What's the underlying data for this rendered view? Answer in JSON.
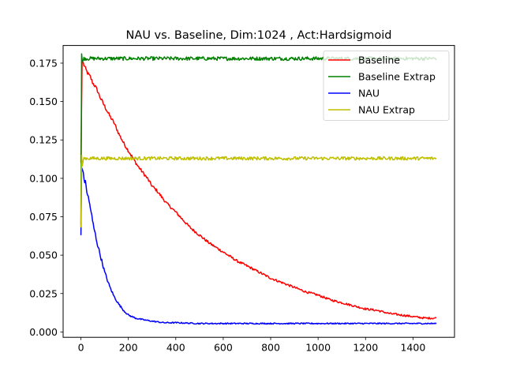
{
  "chart_data": {
    "type": "line",
    "title": "NAU vs. Baseline, Dim:1024 , Act:Hardsigmoid",
    "xlabel": "",
    "ylabel": "",
    "xlim": [
      -75,
      1575
    ],
    "ylim": [
      -0.0035,
      0.1865
    ],
    "x_ticks": [
      0,
      200,
      400,
      600,
      800,
      1000,
      1200,
      1400
    ],
    "x_tick_labels": [
      "0",
      "200",
      "400",
      "600",
      "800",
      "1000",
      "1200",
      "1400"
    ],
    "y_ticks": [
      0.0,
      0.025,
      0.05,
      0.075,
      0.1,
      0.125,
      0.15,
      0.175
    ],
    "y_tick_labels": [
      "0.000",
      "0.025",
      "0.050",
      "0.075",
      "0.100",
      "0.125",
      "0.150",
      "0.175"
    ],
    "grid": false,
    "legend_position": "top-right",
    "series": [
      {
        "name": "Baseline",
        "color": "#ff0000",
        "x": [
          0,
          5,
          10,
          20,
          30,
          40,
          50,
          60,
          70,
          80,
          90,
          100,
          120,
          140,
          160,
          180,
          200,
          220,
          240,
          260,
          280,
          300,
          320,
          340,
          360,
          380,
          400,
          430,
          460,
          500,
          540,
          580,
          620,
          660,
          700,
          750,
          800,
          850,
          900,
          950,
          1000,
          1050,
          1100,
          1150,
          1200,
          1250,
          1300,
          1350,
          1400,
          1450,
          1500
        ],
        "y": [
          0.11,
          0.176,
          0.175,
          0.171,
          0.168,
          0.166,
          0.162,
          0.16,
          0.157,
          0.153,
          0.15,
          0.147,
          0.141,
          0.136,
          0.129,
          0.123,
          0.118,
          0.113,
          0.108,
          0.104,
          0.1,
          0.095,
          0.092,
          0.088,
          0.084,
          0.081,
          0.078,
          0.073,
          0.068,
          0.063,
          0.058,
          0.054,
          0.05,
          0.046,
          0.043,
          0.039,
          0.035,
          0.032,
          0.029,
          0.026,
          0.024,
          0.021,
          0.019,
          0.017,
          0.015,
          0.014,
          0.012,
          0.011,
          0.01,
          0.009,
          0.009
        ]
      },
      {
        "name": "Baseline Extrap",
        "color": "#008000",
        "x": [
          0,
          3,
          6,
          10,
          50,
          100,
          200,
          300,
          400,
          500,
          600,
          700,
          800,
          900,
          1000,
          1100,
          1200,
          1300,
          1400,
          1500
        ],
        "y": [
          0.07,
          0.181,
          0.176,
          0.178,
          0.178,
          0.178,
          0.178,
          0.178,
          0.178,
          0.178,
          0.178,
          0.178,
          0.178,
          0.178,
          0.178,
          0.178,
          0.178,
          0.178,
          0.178,
          0.178
        ]
      },
      {
        "name": "NAU",
        "color": "#0000ff",
        "x": [
          0,
          3,
          10,
          20,
          30,
          40,
          50,
          60,
          70,
          80,
          90,
          100,
          120,
          140,
          160,
          180,
          200,
          230,
          260,
          300,
          350,
          400,
          500,
          600,
          700,
          800,
          900,
          1000,
          1100,
          1200,
          1300,
          1400,
          1500
        ],
        "y": [
          0.063,
          0.107,
          0.102,
          0.096,
          0.088,
          0.081,
          0.071,
          0.064,
          0.057,
          0.051,
          0.045,
          0.039,
          0.03,
          0.023,
          0.018,
          0.014,
          0.011,
          0.009,
          0.008,
          0.007,
          0.006,
          0.006,
          0.0055,
          0.0055,
          0.0055,
          0.0055,
          0.0055,
          0.0055,
          0.0055,
          0.0055,
          0.0055,
          0.0055,
          0.0055
        ]
      },
      {
        "name": "NAU Extrap",
        "color": "#bfbf00",
        "x": [
          0,
          3,
          6,
          10,
          50,
          100,
          200,
          300,
          400,
          500,
          600,
          700,
          800,
          900,
          1000,
          1100,
          1200,
          1300,
          1400,
          1500
        ],
        "y": [
          0.068,
          0.115,
          0.108,
          0.113,
          0.113,
          0.113,
          0.113,
          0.113,
          0.113,
          0.113,
          0.113,
          0.113,
          0.113,
          0.113,
          0.113,
          0.113,
          0.113,
          0.113,
          0.113,
          0.113
        ]
      }
    ]
  }
}
